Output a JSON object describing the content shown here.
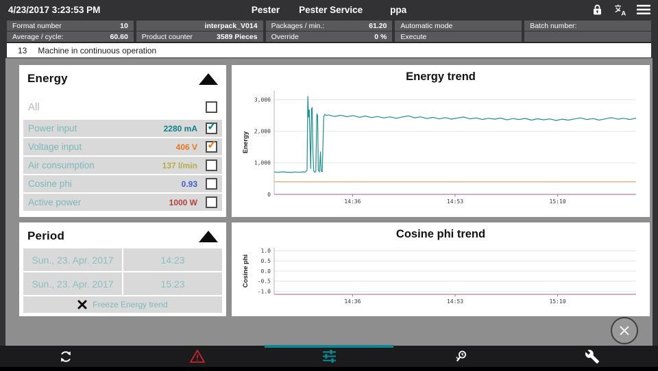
{
  "colors": {
    "accent_teal": "#0e8691",
    "alarm_red": "#c9252c",
    "panel_row_bg": "#d9d9d9",
    "content_bg": "#8e8e8e",
    "cell_bg": "#59595b"
  },
  "glyphs": {
    "check": "✓"
  },
  "top_bar": {
    "datetime": "4/23/2017 3:23:53 PM",
    "user": "Pester",
    "role": "Pester Service",
    "app": "ppa"
  },
  "info_grid": {
    "rows": [
      [
        {
          "label": "Format number",
          "value": "10"
        },
        {
          "label": "",
          "value": "interpack_V014"
        },
        {
          "label": "Packages / min.:",
          "value": "61.20"
        },
        {
          "label": "Automatic mode",
          "value": ""
        },
        {
          "label": "Batch number:",
          "value": ""
        }
      ],
      [
        {
          "label": "Average / cycle:",
          "value": "60.60"
        },
        {
          "label": "Product counter",
          "value": "3589 Pieces"
        },
        {
          "label": "Override",
          "value": "0 %"
        },
        {
          "label": "Execute",
          "value": ""
        },
        {
          "label": "",
          "value": ""
        }
      ]
    ]
  },
  "status_bar": {
    "code": "13",
    "message": "Machine in continuous operation"
  },
  "energy_panel": {
    "title": "Energy",
    "items": [
      {
        "id": "all",
        "label": "All",
        "value": "",
        "checked": false,
        "all": true
      },
      {
        "id": "power-input",
        "label": "Power input",
        "value": "2280 mA",
        "value_color": "#0e7f87",
        "checked": true,
        "check_color": "#0e7f87"
      },
      {
        "id": "voltage-input",
        "label": "Voltage input",
        "value": "406 V",
        "value_color": "#e87722",
        "checked": true,
        "check_color": "#e87722"
      },
      {
        "id": "air-consumption",
        "label": "Air consumption",
        "value": "137 l/min",
        "value_color": "#b9a94b",
        "checked": false
      },
      {
        "id": "cosine-phi",
        "label": "Cosine phi",
        "value": "0.93",
        "value_color": "#3d5bd7",
        "checked": false
      },
      {
        "id": "active-power",
        "label": "Active power",
        "value": "1000 W",
        "value_color": "#b2423c",
        "checked": false
      }
    ]
  },
  "period_panel": {
    "title": "Period",
    "rows": [
      {
        "date": "Sun., 23. Apr. 2017",
        "time": "14:23"
      },
      {
        "date": "Sun., 23. Apr. 2017",
        "time": "15:23"
      }
    ],
    "freeze_label": "Freeze Energy trend"
  },
  "chart_data": [
    {
      "type": "line",
      "title": "Energy trend",
      "ylabel": "Energy",
      "xlabel": "",
      "x_range": [
        "14:23",
        "15:23"
      ],
      "ylim": [
        0,
        3300
      ],
      "grid": true,
      "legend": "none",
      "axis_bottom_color": "#cf93a2",
      "yticks": [
        {
          "v": 0,
          "label": "0"
        },
        {
          "v": 1000,
          "label": "1,000"
        },
        {
          "v": 2000,
          "label": "2,000"
        },
        {
          "v": 3000,
          "label": "3,000"
        }
      ],
      "xticks": [
        {
          "pos": 0.2167,
          "label": "14:36"
        },
        {
          "pos": 0.5,
          "label": "14:53"
        },
        {
          "pos": 0.7833,
          "label": "15:10"
        }
      ],
      "series": [
        {
          "name": "Power input (mA)",
          "color": "#1f8e8e",
          "width": 1.2,
          "points": [
            [
              0,
              710
            ],
            [
              0.012,
              700
            ],
            [
              0.024,
              716
            ],
            [
              0.036,
              704
            ],
            [
              0.048,
              695
            ],
            [
              0.058,
              712
            ],
            [
              0.068,
              700
            ],
            [
              0.078,
              715
            ],
            [
              0.086,
              705
            ],
            [
              0.091,
              760
            ],
            [
              0.093,
              3110
            ],
            [
              0.095,
              2450
            ],
            [
              0.097,
              2680
            ],
            [
              0.099,
              1700
            ],
            [
              0.101,
              820
            ],
            [
              0.103,
              2700
            ],
            [
              0.105,
              2760
            ],
            [
              0.107,
              1400
            ],
            [
              0.109,
              750
            ],
            [
              0.112,
              705
            ],
            [
              0.115,
              715
            ],
            [
              0.118,
              2550
            ],
            [
              0.12,
              2500
            ],
            [
              0.122,
              780
            ],
            [
              0.125,
              715
            ],
            [
              0.128,
              1350
            ],
            [
              0.13,
              735
            ],
            [
              0.133,
              725
            ],
            [
              0.137,
              2470
            ],
            [
              0.14,
              2540
            ],
            [
              0.144,
              2500
            ],
            [
              0.15,
              2520
            ],
            [
              0.167,
              2470
            ],
            [
              0.184,
              2510
            ],
            [
              0.201,
              2465
            ],
            [
              0.218,
              2500
            ],
            [
              0.235,
              2445
            ],
            [
              0.252,
              2485
            ],
            [
              0.269,
              2435
            ],
            [
              0.286,
              2470
            ],
            [
              0.303,
              2425
            ],
            [
              0.32,
              2460
            ],
            [
              0.337,
              2415
            ],
            [
              0.354,
              2455
            ],
            [
              0.371,
              2490
            ],
            [
              0.388,
              2430
            ],
            [
              0.405,
              2460
            ],
            [
              0.422,
              2405
            ],
            [
              0.439,
              2445
            ],
            [
              0.456,
              2395
            ],
            [
              0.473,
              2435
            ],
            [
              0.49,
              2385
            ],
            [
              0.507,
              2425
            ],
            [
              0.524,
              2455
            ],
            [
              0.541,
              2395
            ],
            [
              0.558,
              2425
            ],
            [
              0.575,
              2375
            ],
            [
              0.592,
              2415
            ],
            [
              0.609,
              2385
            ],
            [
              0.626,
              2420
            ],
            [
              0.643,
              2365
            ],
            [
              0.66,
              2405
            ],
            [
              0.677,
              2375
            ],
            [
              0.694,
              2410
            ],
            [
              0.711,
              2355
            ],
            [
              0.728,
              2400
            ],
            [
              0.745,
              2365
            ],
            [
              0.762,
              2395
            ],
            [
              0.779,
              2345
            ],
            [
              0.796,
              2385
            ],
            [
              0.813,
              2355
            ],
            [
              0.83,
              2395
            ],
            [
              0.847,
              2425
            ],
            [
              0.864,
              2375
            ],
            [
              0.881,
              2405
            ],
            [
              0.898,
              2355
            ],
            [
              0.915,
              2395
            ],
            [
              0.932,
              2435
            ],
            [
              0.949,
              2385
            ],
            [
              0.966,
              2415
            ],
            [
              0.983,
              2375
            ],
            [
              1,
              2420
            ]
          ]
        },
        {
          "name": "Voltage input (V)",
          "color": "#efa567",
          "width": 1.2,
          "points": [
            [
              0,
              400
            ],
            [
              1,
              400
            ]
          ]
        }
      ]
    },
    {
      "type": "line",
      "title": "Cosine phi trend",
      "ylabel": "Cosine phi",
      "xlabel": "",
      "x_range": [
        "14:23",
        "15:23"
      ],
      "ylim": [
        -1.15,
        1.15
      ],
      "grid": true,
      "legend": "none",
      "axis_bottom_color": "#cf93a2",
      "yticks": [
        {
          "v": 1,
          "label": "1.0"
        },
        {
          "v": 0.5,
          "label": "0.5"
        },
        {
          "v": 0,
          "label": "0.0"
        },
        {
          "v": -0.5,
          "label": "-0.5"
        },
        {
          "v": -1,
          "label": "-1.0"
        }
      ],
      "xticks": [
        {
          "pos": 0.2167,
          "label": "14:36"
        },
        {
          "pos": 0.5,
          "label": "14:53"
        },
        {
          "pos": 0.7833,
          "label": "15:10"
        }
      ],
      "series": []
    }
  ],
  "bottom_bar": {
    "tabs": [
      {
        "id": "refresh",
        "icon": "refresh-icon",
        "active": false
      },
      {
        "id": "alarms",
        "icon": "warning-icon",
        "active": false
      },
      {
        "id": "trends",
        "icon": "tune-sliders-icon",
        "active": true
      },
      {
        "id": "diagnostics",
        "icon": "diagnostic-search-icon",
        "active": false
      },
      {
        "id": "settings",
        "icon": "wrench-icon",
        "active": false
      }
    ]
  }
}
